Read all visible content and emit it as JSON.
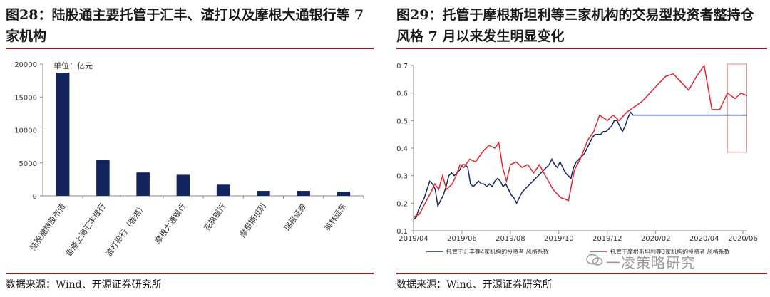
{
  "left_panel": {
    "title": "图28：陆股通主要托管于汇丰、渣打以及摩根大通银行等 7 家机构",
    "source": "数据来源：Wind、开源证券研究所"
  },
  "right_panel": {
    "title": "图29：托管于摩根斯坦利等三家机构的交易型投资者整持仓风格 7 月以来发生明显变化",
    "source": "数据来源：Wind、开源证券研究所"
  },
  "watermark": "一凌策略研究",
  "colors": {
    "navy": "#13255e",
    "red": "#e8222b",
    "rule": "#8a1f1f",
    "highlight_box": "#e8888a"
  },
  "chart_data": [
    {
      "type": "bar",
      "unit_label": "单位：亿元",
      "categories": [
        "陆股通持股市值",
        "香港上海汇丰银行",
        "渣打银行（香港）",
        "摩根大通银行",
        "花旗银行",
        "摩根斯坦利",
        "瑞银证券",
        "美林远东"
      ],
      "values": [
        18700,
        5500,
        3550,
        3200,
        1700,
        750,
        750,
        650
      ],
      "ylim": [
        0,
        20000
      ],
      "yticks": [
        0,
        5000,
        10000,
        15000,
        20000
      ],
      "ytick_labels": [
        "0",
        "5000",
        "10000",
        "15000",
        "20000"
      ],
      "grid": false
    },
    {
      "type": "line",
      "x_ticks": [
        "2019/04",
        "2019/06",
        "2019/08",
        "2019/10",
        "2019/12",
        "2020/02",
        "2020/04",
        "2020/06"
      ],
      "ylim": [
        0.1,
        0.7
      ],
      "yticks": [
        0.1,
        0.2,
        0.3,
        0.4,
        0.5,
        0.6,
        0.7
      ],
      "ytick_labels": [
        "0.1",
        "0.2",
        "0.3",
        "0.4",
        "0.5",
        "0.6",
        "0.7"
      ],
      "grid": false,
      "legend_position": "bottom",
      "highlight": {
        "x_range": [
          1.62,
          1.72
        ],
        "y_range": [
          0.385,
          0.705
        ],
        "note": "7月以来"
      },
      "series": [
        {
          "name": "托管于汇丰等4家机构的投资者 风格系数",
          "color": "#13255e",
          "x": [
            0.0,
            0.014,
            0.028,
            0.042,
            0.056,
            0.07,
            0.084,
            0.098,
            0.112,
            0.126,
            0.14,
            0.154,
            0.168,
            0.182,
            0.196,
            0.21,
            0.224,
            0.238,
            0.252,
            0.266,
            0.28,
            0.294,
            0.308,
            0.322,
            0.336,
            0.35,
            0.364,
            0.378,
            0.392,
            0.406,
            0.42,
            0.434,
            0.448,
            0.462,
            0.476,
            0.49,
            0.504,
            0.518,
            0.532,
            0.546,
            0.56,
            0.574,
            0.588,
            0.602,
            0.616,
            0.63,
            0.644,
            0.658,
            0.672,
            0.686,
            0.7,
            0.714,
            0.728,
            0.742,
            0.756,
            0.77,
            0.784,
            0.798,
            0.812,
            0.826,
            0.84,
            0.854,
            0.868,
            0.882,
            0.896,
            0.91,
            0.924,
            0.938,
            0.952,
            0.966,
            0.98,
            0.994,
            1.008,
            1.022,
            1.036,
            1.05,
            1.064,
            1.078,
            1.092,
            1.106,
            1.12,
            1.134,
            1.148,
            1.162,
            1.176,
            1.19,
            1.204,
            1.218,
            1.232,
            1.246,
            1.26,
            1.274,
            1.288,
            1.302,
            1.316,
            1.33,
            1.344,
            1.358,
            1.372,
            1.386,
            1.4,
            1.414,
            1.428,
            1.442,
            1.456,
            1.47,
            1.484,
            1.498,
            1.512,
            1.526,
            1.54,
            1.554,
            1.568,
            1.582,
            1.596,
            1.61,
            1.624,
            1.638,
            1.652,
            1.666,
            1.68,
            1.694,
            1.708,
            1.722
          ],
          "values": [
            0.14,
            0.15,
            0.18,
            0.2,
            0.22,
            0.25,
            0.28,
            0.27,
            0.25,
            0.19,
            0.21,
            0.23,
            0.26,
            0.3,
            0.31,
            0.3,
            0.31,
            0.32,
            0.34,
            0.34,
            0.33,
            0.27,
            0.26,
            0.27,
            0.28,
            0.27,
            0.27,
            0.26,
            0.27,
            0.26,
            0.28,
            0.29,
            0.28,
            0.26,
            0.27,
            0.25,
            0.23,
            0.22,
            0.2,
            0.22,
            0.24,
            0.25,
            0.26,
            0.27,
            0.28,
            0.29,
            0.3,
            0.31,
            0.32,
            0.33,
            0.34,
            0.36,
            0.34,
            0.33,
            0.35,
            0.33,
            0.31,
            0.3,
            0.29,
            0.33,
            0.35,
            0.36,
            0.37,
            0.38,
            0.4,
            0.42,
            0.44,
            0.45,
            0.45,
            0.45,
            0.46,
            0.46,
            0.47,
            0.48,
            0.5,
            0.5,
            0.48,
            0.46,
            0.48,
            0.51,
            0.53,
            0.52,
            0.52,
            0.52,
            0.52,
            0.52,
            0.52,
            0.52,
            0.52,
            0.52,
            0.52,
            0.52,
            0.52,
            0.52,
            0.52,
            0.52,
            0.52,
            0.52,
            0.52,
            0.52,
            0.52,
            0.52,
            0.52,
            0.52,
            0.52,
            0.52,
            0.52,
            0.52,
            0.52,
            0.52,
            0.52,
            0.52,
            0.52,
            0.52,
            0.52,
            0.52,
            0.52,
            0.52,
            0.52,
            0.52,
            0.52,
            0.52,
            0.52,
            0.52
          ]
        },
        {
          "name": "托管于摩根斯坦利等3家机构的投资者 风格系数",
          "color": "#e8222b",
          "x": [],
          "values": []
        }
      ]
    }
  ]
}
